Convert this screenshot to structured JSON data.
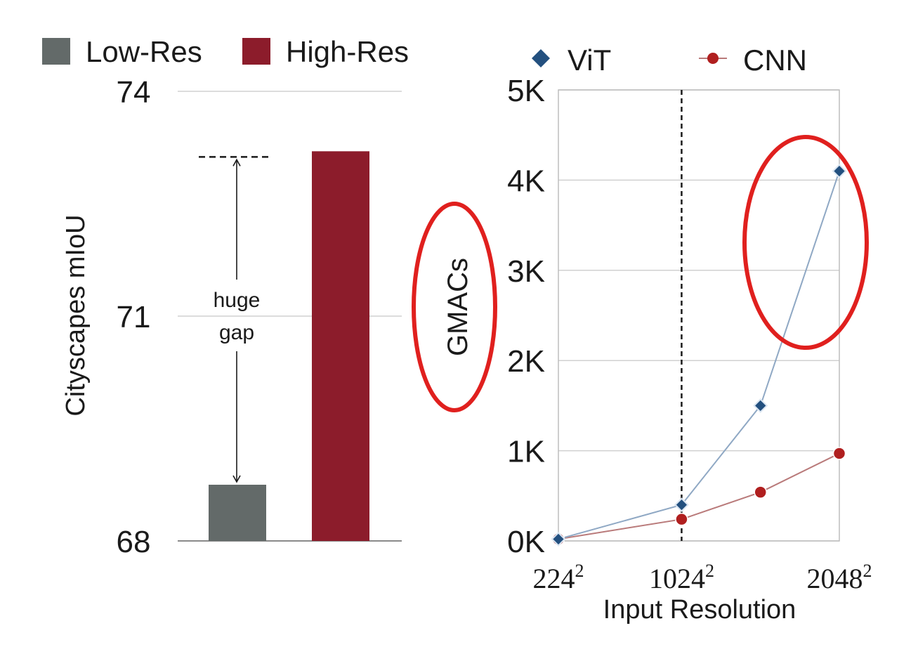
{
  "colors": {
    "low_res": "#636a69",
    "high_res": "#8c1c2b",
    "vit": "#23507f",
    "vit_line": "#8fa8c4",
    "cnn": "#b01f1f",
    "cnn_line": "#b97a7a",
    "highlight": "#e0201e",
    "grid": "#d0d0d0"
  },
  "chart_data": [
    {
      "type": "bar",
      "legend": [
        "Low-Res",
        "High-Res"
      ],
      "legend_placement": "top",
      "categories": [
        "Low-Res",
        "High-Res"
      ],
      "values": [
        68.75,
        73.2
      ],
      "ylabel": "Cityscapes mIoU",
      "ylim": [
        68,
        74
      ],
      "yticks": [
        68,
        71,
        74
      ],
      "ytick_labels": [
        "68",
        "71",
        "74"
      ],
      "grid": true,
      "annotation": {
        "text_lines": [
          "huge",
          "gap"
        ],
        "from": 68.75,
        "to": 73.2
      }
    },
    {
      "type": "line",
      "legend_placement": "top",
      "series": [
        {
          "name": "ViT",
          "marker": "diamond",
          "x": [
            224,
            1024,
            1536,
            2048
          ],
          "values": [
            0.02,
            0.4,
            1.5,
            4.1
          ]
        },
        {
          "name": "CNN",
          "marker": "circle",
          "x": [
            224,
            1024,
            1536,
            2048
          ],
          "values": [
            0.02,
            0.24,
            0.54,
            0.97
          ]
        }
      ],
      "ylabel": "GMACs",
      "xlabel": "Input Resolution",
      "ylim": [
        0,
        5
      ],
      "yticks": [
        0,
        1,
        2,
        3,
        4,
        5
      ],
      "ytick_labels": [
        "0K",
        "1K",
        "2K",
        "3K",
        "4K",
        "5K"
      ],
      "xlim": [
        224,
        2048
      ],
      "xticks": [
        224,
        1024,
        2048
      ],
      "xtick_labels": [
        {
          "base": "224",
          "exp": "2"
        },
        {
          "base": "1024",
          "exp": "2"
        },
        {
          "base": "2048",
          "exp": "2"
        }
      ],
      "reference_line_x": 1024,
      "grid": true,
      "highlights": [
        "GMACs axis label",
        "ViT at 2048²"
      ]
    }
  ]
}
